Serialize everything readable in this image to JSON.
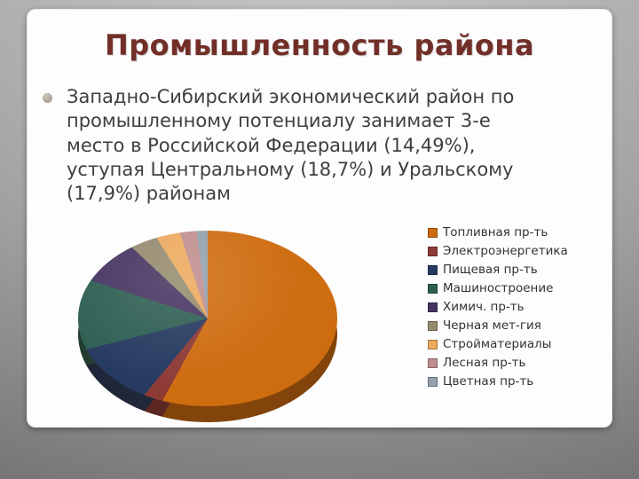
{
  "slide": {
    "title": "Промышленность района",
    "bullet_text": "Западно-Сибирский экономический район по\nпромышленному потенциалу занимает 3-е\nместо в Российской Федерации (14,49%),\nуступая Центральному (18,7%) и Уральскому\n(17,9%) районам"
  },
  "chart_data": {
    "type": "pie",
    "title": "",
    "legend_position": "right",
    "style": "3d-pie",
    "series": [
      {
        "label": "Топливная пр-ть",
        "value": 58,
        "color": "#ce6c10"
      },
      {
        "label": "Электроэнергетика",
        "value": 3,
        "color": "#8e3b36"
      },
      {
        "label": "Пищевая пр-ть",
        "value": 10,
        "color": "#263a60"
      },
      {
        "label": "Машиностроение",
        "value": 9,
        "color": "#2e5e52"
      },
      {
        "label": "Химич. пр-ть",
        "value": 7,
        "color": "#463460"
      },
      {
        "label": "Черная мет-гия",
        "value": 4,
        "color": "#948a6e"
      },
      {
        "label": "Стройматериалы",
        "value": 4,
        "color": "#eda95e"
      },
      {
        "label": "Лесная пр-ть",
        "value": 3,
        "color": "#c08e8e"
      },
      {
        "label": "Цветная пр-ть",
        "value": 2,
        "color": "#93a1ae"
      }
    ]
  }
}
